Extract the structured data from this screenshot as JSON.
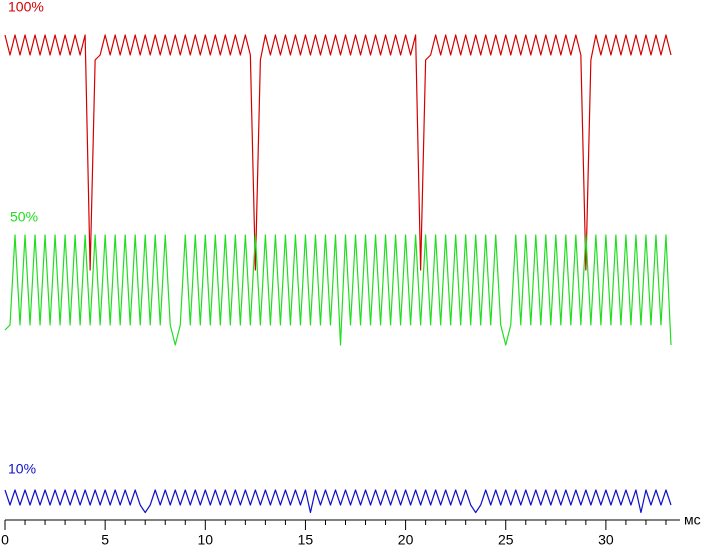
{
  "chart_data": {
    "type": "line",
    "x_label": "мс",
    "x": [
      0,
      0.25,
      0.5,
      0.75,
      1,
      1.25,
      1.5,
      1.75,
      2,
      2.25,
      2.5,
      2.75,
      3,
      3.25,
      3.5,
      3.75,
      4,
      4.25,
      4.5,
      4.75,
      5,
      5.25,
      5.5,
      5.75,
      6,
      6.25,
      6.5,
      6.75,
      7,
      7.25,
      7.5,
      7.75,
      8,
      8.25,
      8.5,
      8.75,
      9,
      9.25,
      9.5,
      9.75,
      10,
      10.25,
      10.5,
      10.75,
      11,
      11.25,
      11.5,
      11.75,
      12,
      12.25,
      12.5,
      12.75,
      13,
      13.25,
      13.5,
      13.75,
      14,
      14.25,
      14.5,
      14.75,
      15,
      15.25,
      15.5,
      15.75,
      16,
      16.25,
      16.5,
      16.75,
      17,
      17.25,
      17.5,
      17.75,
      18,
      18.25,
      18.5,
      18.75,
      19,
      19.25,
      19.5,
      19.75,
      20,
      20.25,
      20.5,
      20.75,
      21,
      21.25,
      21.5,
      21.75,
      22,
      22.25,
      22.5,
      22.75,
      23,
      23.25,
      23.5,
      23.75,
      24,
      24.25,
      24.5,
      24.75,
      25,
      25.25,
      25.5,
      25.75,
      26,
      26.25,
      26.5,
      26.75,
      27,
      27.25,
      27.5,
      27.75,
      28,
      28.25,
      28.5,
      28.75,
      29,
      29.25,
      29.5,
      29.75,
      30,
      30.25,
      30.5,
      30.75,
      31,
      31.25,
      31.5,
      31.75,
      32,
      32.25,
      32.5,
      32.75,
      33,
      33.25
    ],
    "series": [
      {
        "name": "100%",
        "color": "#d40000",
        "values": [
          97,
          93,
          97,
          93,
          97,
          93,
          97,
          93,
          97,
          93,
          97,
          93,
          97,
          93,
          97,
          93,
          97,
          50,
          92,
          93,
          97,
          93,
          97,
          93,
          97,
          93,
          97,
          93,
          97,
          93,
          97,
          93,
          97,
          93,
          97,
          93,
          97,
          93,
          97,
          93,
          97,
          93,
          97,
          93,
          97,
          93,
          97,
          93,
          97,
          93,
          50,
          92,
          97,
          93,
          97,
          93,
          97,
          93,
          97,
          93,
          97,
          93,
          97,
          93,
          97,
          93,
          97,
          93,
          97,
          93,
          97,
          93,
          97,
          93,
          97,
          93,
          97,
          93,
          97,
          93,
          97,
          93,
          97,
          50,
          92,
          93,
          97,
          93,
          97,
          93,
          97,
          93,
          97,
          93,
          97,
          93,
          97,
          93,
          97,
          93,
          97,
          93,
          97,
          93,
          97,
          93,
          97,
          93,
          97,
          93,
          97,
          93,
          97,
          93,
          97,
          93,
          50,
          92,
          97,
          93,
          97,
          93,
          97,
          93,
          97,
          93,
          97,
          93,
          97,
          93,
          97,
          93,
          97,
          93
        ]
      },
      {
        "name": "50%",
        "color": "#22dd22",
        "values": [
          38,
          39,
          57,
          39,
          57,
          39,
          57,
          39,
          57,
          39,
          57,
          39,
          57,
          39,
          57,
          39,
          57,
          39,
          57,
          39,
          57,
          39,
          57,
          39,
          57,
          39,
          57,
          39,
          57,
          39,
          57,
          39,
          57,
          39,
          35,
          39,
          57,
          39,
          57,
          39,
          57,
          39,
          57,
          39,
          57,
          39,
          57,
          39,
          57,
          39,
          57,
          39,
          57,
          39,
          57,
          39,
          57,
          39,
          57,
          39,
          57,
          39,
          57,
          39,
          57,
          39,
          57,
          35,
          57,
          39,
          57,
          39,
          57,
          39,
          57,
          39,
          57,
          39,
          57,
          39,
          57,
          39,
          57,
          39,
          57,
          39,
          57,
          39,
          57,
          39,
          57,
          39,
          57,
          39,
          57,
          39,
          57,
          39,
          57,
          39,
          35,
          39,
          57,
          39,
          57,
          39,
          57,
          39,
          57,
          39,
          57,
          39,
          57,
          39,
          57,
          39,
          57,
          39,
          57,
          39,
          57,
          39,
          57,
          39,
          57,
          39,
          57,
          39,
          57,
          39,
          57,
          39,
          57,
          35
        ]
      },
      {
        "name": "10%",
        "color": "#1010c8",
        "values": [
          6,
          3,
          6,
          3,
          6,
          3,
          6,
          3,
          6,
          3,
          6,
          3,
          6,
          3,
          6,
          3,
          6,
          3,
          6,
          3,
          6,
          3,
          6,
          3,
          6,
          3,
          6,
          3,
          1.5,
          3,
          6,
          3,
          6,
          3,
          6,
          3,
          6,
          3,
          6,
          3,
          6,
          3,
          6,
          3,
          6,
          3,
          6,
          3,
          6,
          3,
          6,
          3,
          6,
          3,
          6,
          3,
          6,
          3,
          6,
          3,
          6,
          1.5,
          6,
          3,
          6,
          3,
          6,
          3,
          6,
          3,
          6,
          3,
          6,
          3,
          6,
          3,
          6,
          3,
          6,
          3,
          6,
          3,
          6,
          3,
          6,
          3,
          6,
          3,
          6,
          3,
          6,
          3,
          6,
          3,
          1.5,
          3,
          6,
          3,
          6,
          3,
          6,
          3,
          6,
          3,
          6,
          3,
          6,
          3,
          6,
          3,
          6,
          3,
          6,
          3,
          6,
          3,
          6,
          3,
          6,
          3,
          6,
          3,
          6,
          3,
          6,
          3,
          6,
          1.5,
          6,
          3,
          6,
          3,
          6,
          3
        ]
      }
    ],
    "xlim": [
      0,
      33.7
    ],
    "ylim": [
      0,
      104
    ],
    "xticks": [
      0,
      5,
      10,
      15,
      20,
      25,
      30
    ],
    "xminorticks": [
      1,
      2,
      3,
      4,
      6,
      7,
      8,
      9,
      11,
      12,
      13,
      14,
      16,
      17,
      18,
      19,
      21,
      22,
      23,
      24,
      26,
      27,
      28,
      29,
      31,
      32,
      33
    ]
  }
}
